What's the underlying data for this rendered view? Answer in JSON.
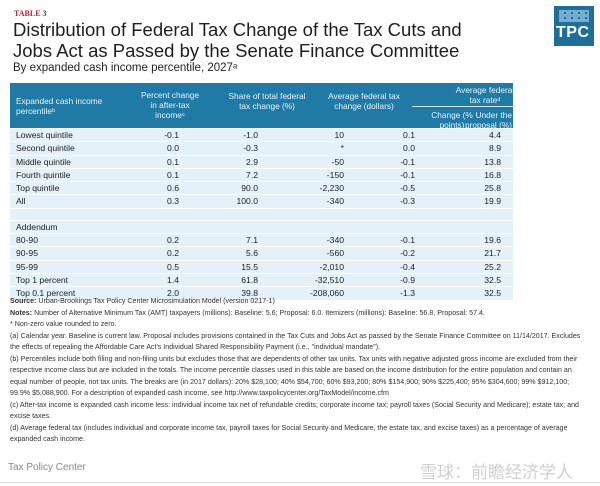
{
  "table_label": "TABLE 3",
  "title": "Distribution of Federal Tax Change of the Tax Cuts and Jobs Act as Passed by the Senate Finance Committee",
  "subtitle": "By expanded cash income percentile, 2027ᵃ",
  "logo": "TPC",
  "header": {
    "col0": "Expanded cash income percentileᵇ",
    "col1": "Percent change in after-tax incomeᶜ",
    "col2": "Share of total federal tax change (%)",
    "col3": "Average federal tax change (dollars)",
    "group": "Average federal tax rateᵈ",
    "col4": "Change (% points)",
    "col5": "Under the proposal (%)"
  },
  "rows": [
    [
      "Lowest quintile",
      "-0.1",
      "-1.0",
      "10",
      "0.1",
      "4.4"
    ],
    [
      "Second quintile",
      "0.0",
      "-0.3",
      "*",
      "0.0",
      "8.9"
    ],
    [
      "Middle quintile",
      "0.1",
      "2.9",
      "-50",
      "-0.1",
      "13.8"
    ],
    [
      "Fourth quintile",
      "0.1",
      "7.2",
      "-150",
      "-0.1",
      "16.8"
    ],
    [
      "Top quintile",
      "0.6",
      "90.0",
      "-2,230",
      "-0.5",
      "25.8"
    ],
    [
      "All",
      "0.3",
      "100.0",
      "-340",
      "-0.3",
      "19.9"
    ]
  ],
  "addendum_label": "Addendum",
  "addendum_rows": [
    [
      "80-90",
      "0.2",
      "7.1",
      "-340",
      "-0.1",
      "19.6"
    ],
    [
      "90-95",
      "0.2",
      "5.6",
      "-560",
      "-0.2",
      "21.7"
    ],
    [
      "95-99",
      "0.5",
      "15.5",
      "-2,010",
      "-0.4",
      "25.2"
    ],
    [
      "Top 1 percent",
      "1.4",
      "61.8",
      "-32,510",
      "-0.9",
      "32.5"
    ],
    [
      "Top 0.1 percent",
      "2.0",
      "39.8",
      "-208,060",
      "-1.3",
      "32.5"
    ]
  ],
  "notes": {
    "source_label": "Source:",
    "source": "Urban-Brookings Tax Policy Center Microsimulation Model (version 0217-1)",
    "notes_label": "Notes:",
    "notes": "Number of Alternative Minimum Tax (AMT) taxpayers (millions): Baseline: 5.6; Proposal: 6.0. Itemizers (millions): Baseline: 56.8, Proposal: 57.4.",
    "nonzero": "* Non-zero value rounded to zero.",
    "a": "(a) Calendar year. Baseline is current law. Proposal includes provisions contained in the Tax Cuts and Jobs Act as passed by the Senate Finance Committee on 11/14/2017. Excludes the effects of repealing the Affordable Care Act's Individual Shared Responsibility Payment (i.e., \"individual mandate\").",
    "b": "(b) Percentiles include both filing and non-filing units but excludes those that are dependents of other tax units. Tax units with negative adjusted gross income are excluded from their respective income class but are included in the totals. The income percentile classes used in this table are based on the income distribution for the entire population and contain an equal number of people, not tax units. The breaks are (in 2017 dollars): 20% $28,100; 40% $54,700; 60% $93,200; 80% $154,900; 90% $225,400; 95% $304,600; 99% $912,100; 99.9% $5,088,900. For a description of expanded cash income, see http://www.taxpolicycenter.org/TaxModel/income.cfm",
    "c": "(c) After-tax income is expanded cash income less: individual income tax net of refundable credits; corporate income tax; payroll taxes (Social Security and Medicare); estate tax; and excise taxes.",
    "d": "(d) Average federal tax (includes individual and corporate income tax, payroll taxes for Social Security and Medicare, the estate tax, and excise taxes) as a percentage of average expanded cash income."
  },
  "footer": "Tax Policy Center",
  "watermark": "雪球：前瞻经济学人",
  "colors": {
    "header_bg": "#1f7aa5",
    "row_bg": "#e4f1f8",
    "label_red": "#b0243a"
  }
}
